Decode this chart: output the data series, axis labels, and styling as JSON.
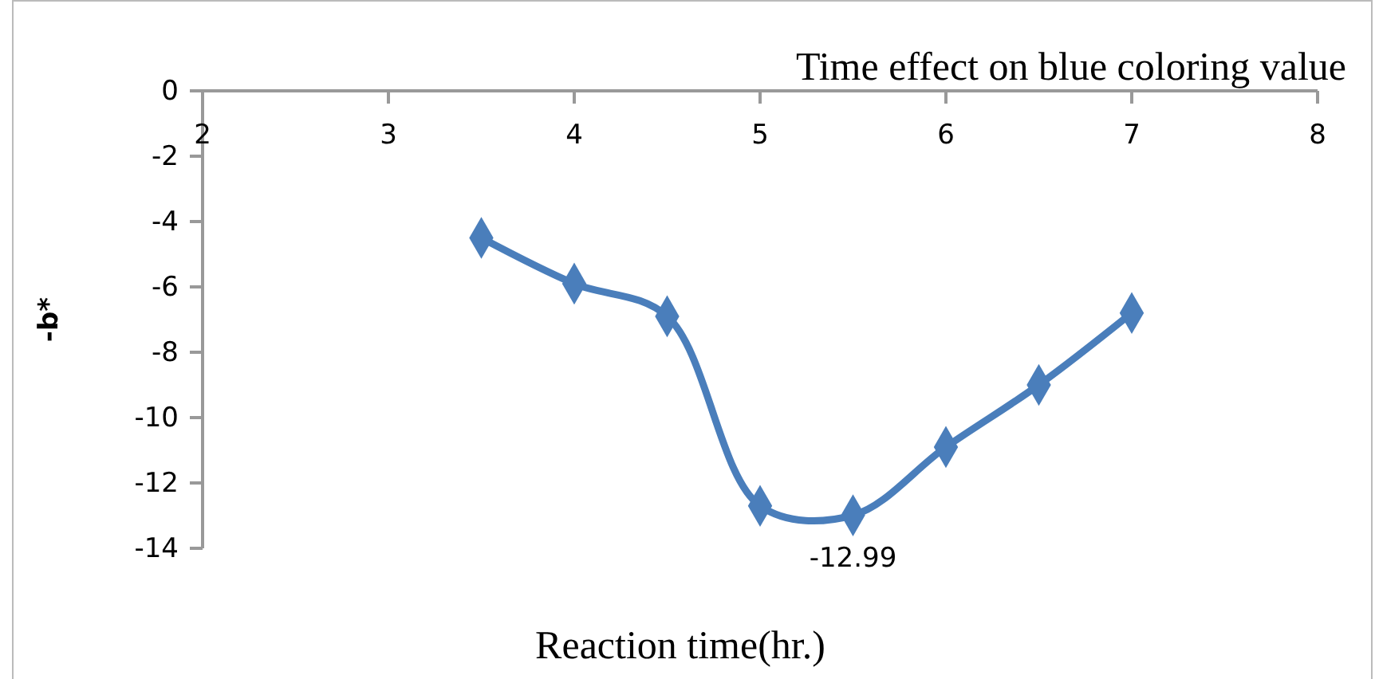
{
  "chart_data": {
    "type": "line",
    "title": "Time effect on blue coloring value",
    "xlabel": "Reaction time(hr.)",
    "ylabel": "-b*",
    "x": [
      3.5,
      4,
      4.5,
      5,
      5.5,
      6,
      6.5,
      7
    ],
    "series": [
      {
        "color": "#4a7ebb",
        "values": [
          -4.5,
          -5.9,
          -6.9,
          -12.7,
          -12.99,
          -10.9,
          -9,
          -6.8
        ],
        "value_labels": [
          null,
          null,
          null,
          null,
          "-12.99",
          null,
          null,
          null
        ]
      }
    ],
    "xlim": [
      2,
      8
    ],
    "xticks": [
      2,
      3,
      4,
      5,
      6,
      7,
      8
    ],
    "ylim": [
      -14,
      0
    ],
    "yticks": [
      -14,
      -12,
      -10,
      -8,
      -6,
      -4,
      -2,
      0
    ],
    "marker": "diamond",
    "line_style": "solid"
  }
}
